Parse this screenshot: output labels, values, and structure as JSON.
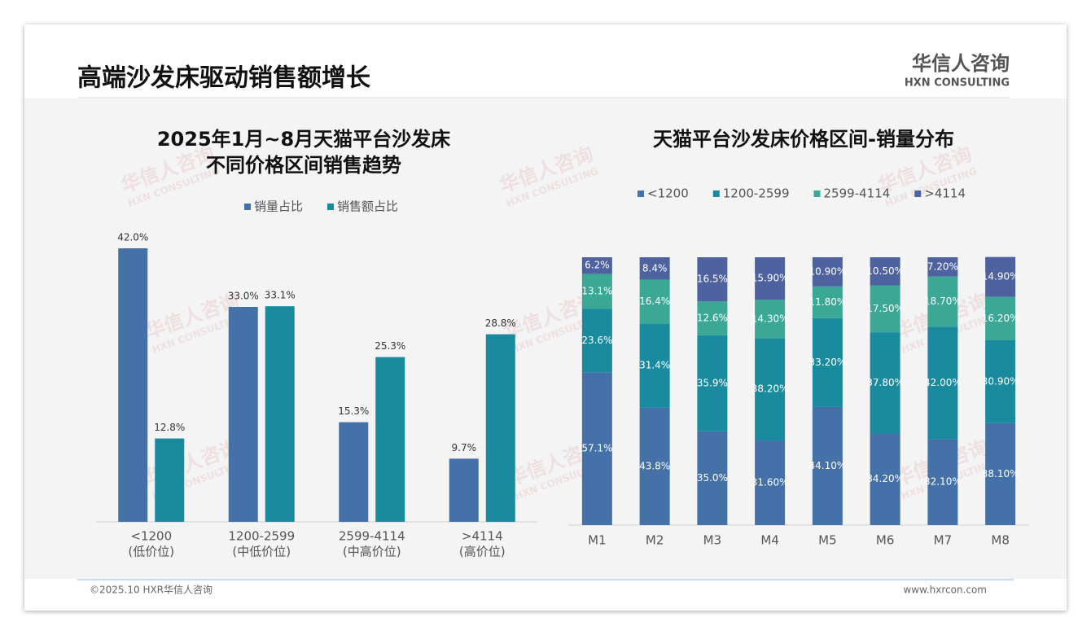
{
  "header": {
    "title": "高端沙发床驱动销售额增长",
    "logo": "华信人咨询",
    "logo_en": "HXN CONSULTING"
  },
  "watermark": {
    "name": "华信人咨询",
    "en": "HXN CONSULTING"
  },
  "footer": {
    "left": "©2025.10 HXR华信人咨询",
    "right": "www.hxrcon.com"
  },
  "chart_data": [
    {
      "type": "bar",
      "title": [
        "2025年1月~8月天猫平台沙发床",
        "不同价格区间销售趋势"
      ],
      "categories": [
        "<1200",
        "1200-2599",
        "2599-4114",
        ">4114"
      ],
      "category_notes": [
        "(低价位)",
        "(中低价位)",
        "(中高价位)",
        "(高价位)"
      ],
      "series": [
        {
          "name": "销量占比",
          "color": "#4472a8",
          "values": [
            42.0,
            33.0,
            15.3,
            9.7
          ],
          "value_labels": [
            "42.0%",
            "33.0%",
            "15.3%",
            "9.7%"
          ]
        },
        {
          "name": "销售额占比",
          "color": "#1a8a9e",
          "values": [
            12.8,
            33.1,
            25.3,
            28.8
          ],
          "value_labels": [
            "12.8%",
            "33.1%",
            "25.3%",
            "28.8%"
          ]
        }
      ],
      "ylim": [
        0,
        45
      ]
    },
    {
      "type": "stacked_bar",
      "title": [
        "天猫平台沙发床价格区间-销量分布"
      ],
      "categories": [
        "M1",
        "M2",
        "M3",
        "M4",
        "M5",
        "M6",
        "M7",
        "M8"
      ],
      "series": [
        {
          "name": "<1200",
          "color": "#4472a8",
          "values": [
            57.1,
            43.8,
            35.0,
            31.6,
            44.1,
            34.2,
            32.1,
            38.1
          ],
          "value_labels": [
            "57.1%",
            "43.8%",
            "35.0%",
            "31.60%",
            "44.10%",
            "34.20%",
            "32.10%",
            "38.10%"
          ]
        },
        {
          "name": "1200-2599",
          "color": "#1a8a9e",
          "values": [
            23.6,
            31.4,
            35.9,
            38.2,
            33.2,
            37.8,
            42.0,
            30.9
          ],
          "value_labels": [
            "23.6%",
            "31.4%",
            "35.9%",
            "38.20%",
            "33.20%",
            "37.80%",
            "42.00%",
            "30.90%"
          ]
        },
        {
          "name": "2599-4114",
          "color": "#3aa894",
          "values": [
            13.1,
            16.4,
            12.6,
            14.3,
            11.8,
            17.5,
            18.7,
            16.2
          ],
          "value_labels": [
            "13.1%",
            "16.4%",
            "12.6%",
            "14.30%",
            "11.80%",
            "17.50%",
            "18.70%",
            "16.20%"
          ]
        },
        {
          "name": ">4114",
          "color": "#4e62a0",
          "values": [
            6.2,
            8.4,
            16.5,
            15.9,
            10.9,
            10.5,
            7.2,
            14.9
          ],
          "value_labels": [
            "6.2%",
            "8.4%",
            "16.5%",
            "15.90%",
            "10.90%",
            "10.50%",
            "7.20%",
            "14.90%"
          ]
        }
      ],
      "ylim": [
        0,
        100
      ]
    }
  ]
}
